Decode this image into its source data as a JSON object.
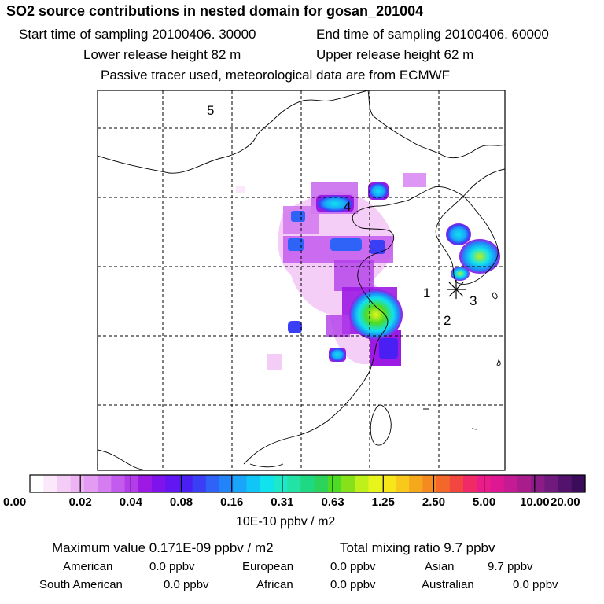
{
  "header": {
    "title": "SO2 source contributions in nested domain for gosan_201004",
    "start_label": "Start time of sampling 20100406. 30000",
    "end_label": "End time of sampling 20100406. 60000",
    "lower_label": "Lower release height   82 m",
    "upper_label": "Upper release height   62 m",
    "tracer_note": "Passive tracer used, meteorological data are from ECMWF"
  },
  "map": {
    "region_labels": [
      "1",
      "2",
      "3",
      "4",
      "5"
    ]
  },
  "chart_data": {
    "type": "heatmap",
    "title": "SO2 source contributions in nested domain for gosan_201004",
    "colorbar": {
      "ticks": [
        "0.00",
        "0.02",
        "0.04",
        "0.08",
        "0.16",
        "0.31",
        "0.63",
        "1.25",
        "2.50",
        "5.00",
        "10.00",
        "20.00"
      ],
      "units": "10E-10 ppbv / m2",
      "colors": [
        "#ffffff",
        "#fbe9fb",
        "#f4cdf7",
        "#eeb3f3",
        "#e39cf1",
        "#d47cf0",
        "#c35bee",
        "#b23de9",
        "#9d1ae4",
        "#7e13ec",
        "#6416f2",
        "#4a1ff4",
        "#3a3ff6",
        "#2f63f8",
        "#2185f9",
        "#19a6fa",
        "#0fc6f7",
        "#10e2ee",
        "#1de9c8",
        "#23e2a6",
        "#1fd982",
        "#2bd35a",
        "#4ddb24",
        "#86e11a",
        "#bff01a",
        "#e7f51d",
        "#f7e61a",
        "#f8c81a",
        "#f6a81c",
        "#f48a20",
        "#f4672a",
        "#f34640",
        "#ef2a66",
        "#ea1c8a",
        "#de1893",
        "#c51a92",
        "#a81c8c",
        "#8b1c86",
        "#6f1a7c",
        "#53126b",
        "#3b0c5a"
      ]
    },
    "grid": true
  },
  "footer": {
    "max_value": "Maximum value  0.171E-09 ppbv / m2",
    "total_mixing": "Total mixing ratio       9.7 ppbv",
    "american_label": "American",
    "american_value": "0.0 ppbv",
    "european_label": "European",
    "european_value": "0.0 ppbv",
    "asian_label": "Asian",
    "asian_value": "9.7 ppbv",
    "south_american_label": "South American",
    "south_american_value": "0.0 ppbv",
    "african_label": "African",
    "african_value": "0.0 ppbv",
    "australian_label": "Australian",
    "australian_value": "0.0 ppbv"
  }
}
